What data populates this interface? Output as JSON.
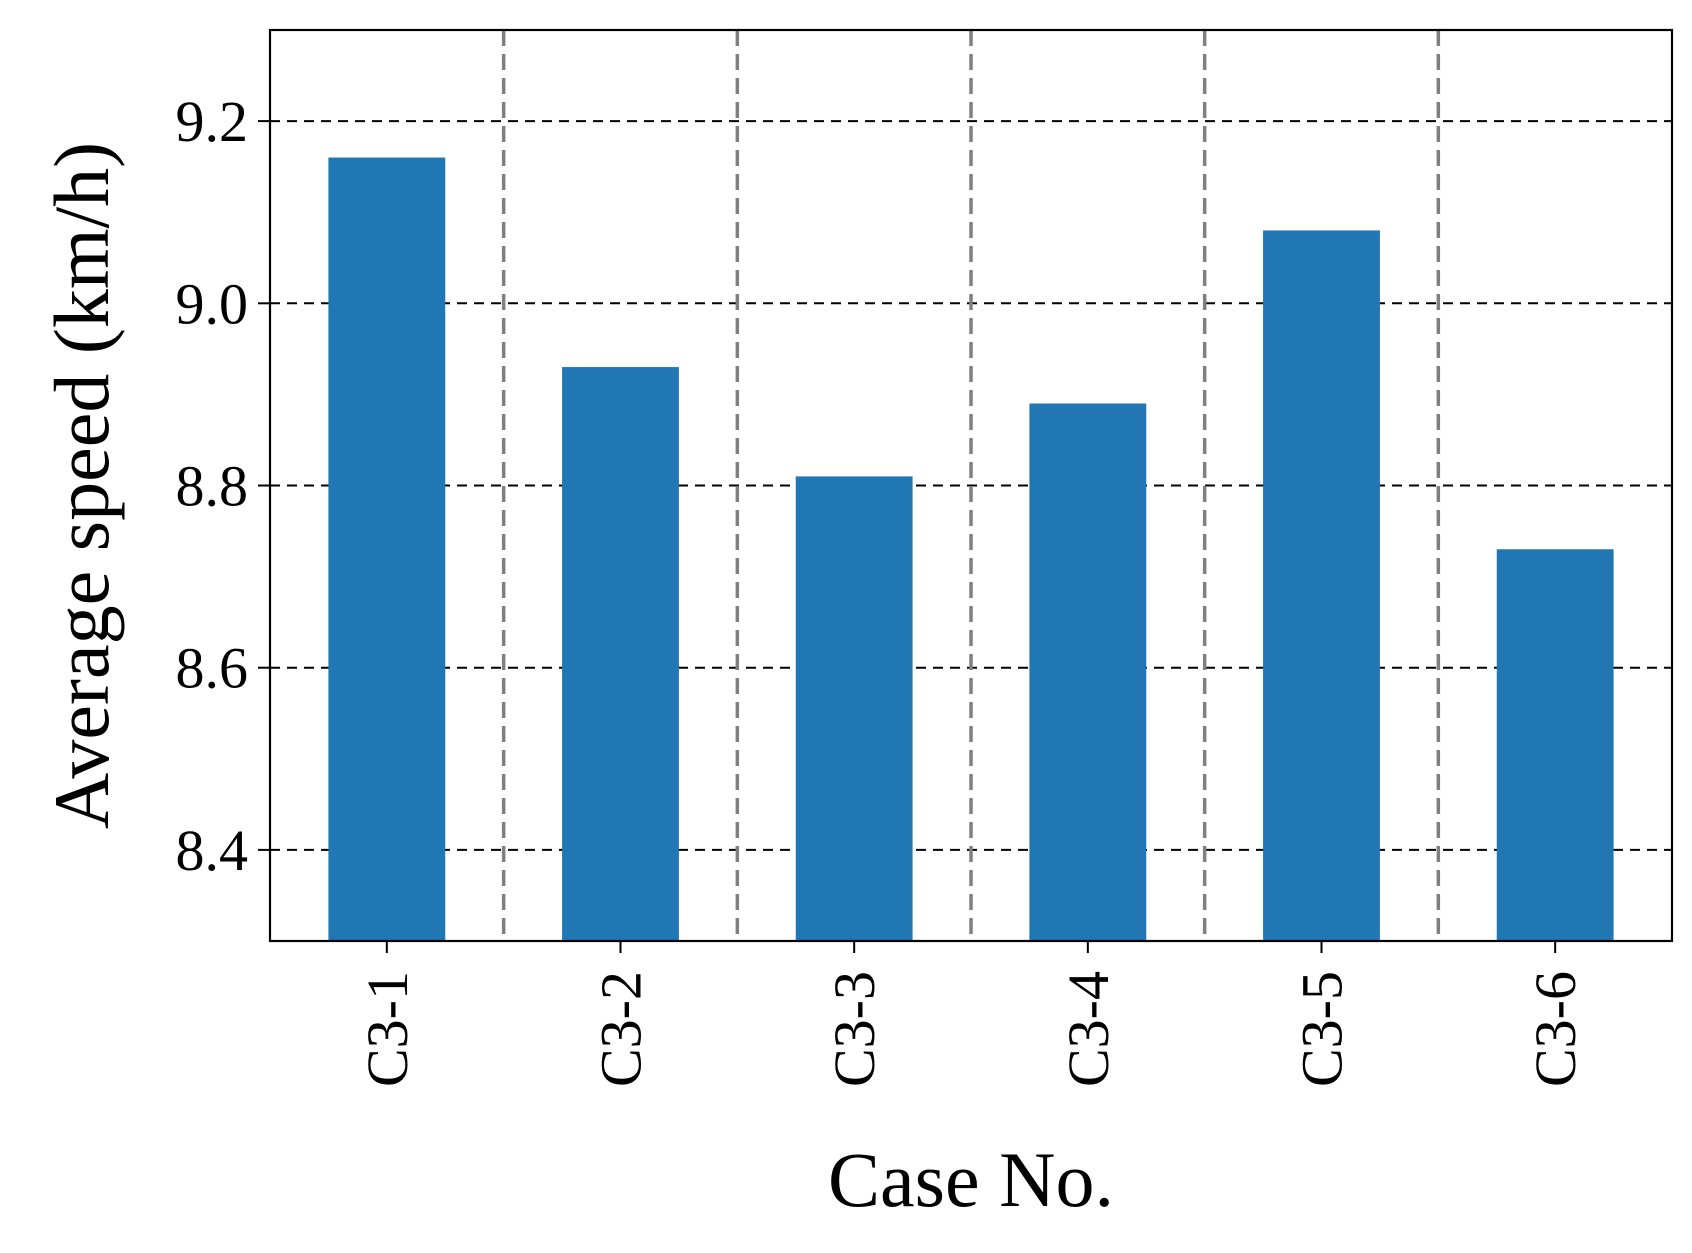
{
  "chart_data": {
    "type": "bar",
    "title": "",
    "xlabel": "Case No.",
    "ylabel": "Average speed (km/h)",
    "categories": [
      "C3-1",
      "C3-2",
      "C3-3",
      "C3-4",
      "C3-5",
      "C3-6"
    ],
    "values": [
      9.16,
      8.93,
      8.81,
      8.89,
      9.08,
      8.73
    ],
    "ylim": [
      8.3,
      9.3
    ],
    "yticks": [
      8.4,
      8.6,
      8.8,
      9.0,
      9.2
    ],
    "ytick_labels": [
      "8.4",
      "8.6",
      "8.8",
      "9.0",
      "9.2"
    ],
    "grid": {
      "horizontal": true,
      "vertical_separators": true,
      "horizontal_color": "#000000",
      "separator_color": "#808080",
      "style": "dashed"
    },
    "bar_color": "#2077b4",
    "legend": "none"
  }
}
